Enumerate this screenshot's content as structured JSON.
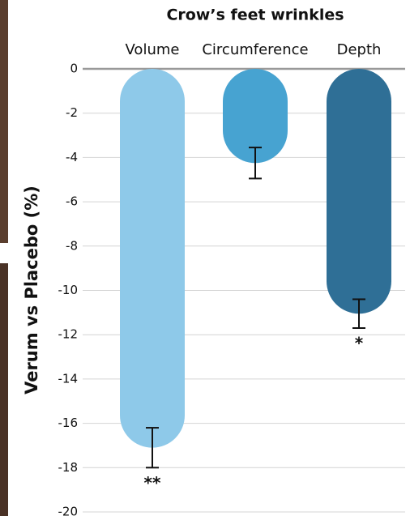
{
  "chart_data": {
    "type": "bar",
    "title": "Crow’s feet wrinkles",
    "y_label": "Verum vs Placebo (%)",
    "categories": [
      "Volume",
      "Circumference",
      "Depth"
    ],
    "values": [
      -17.1,
      -4.25,
      -11.05
    ],
    "errors": [
      0.9,
      0.7,
      0.65
    ],
    "colors": [
      "#8ec9e9",
      "#47a3d1",
      "#2f6f96"
    ],
    "significance": [
      "**",
      null,
      "*"
    ],
    "ylim": [
      0,
      -20
    ],
    "yticks": [
      0,
      -2,
      -4,
      -6,
      -8,
      -10,
      -12,
      -14,
      -16,
      -18,
      -20
    ],
    "grid": true
  }
}
